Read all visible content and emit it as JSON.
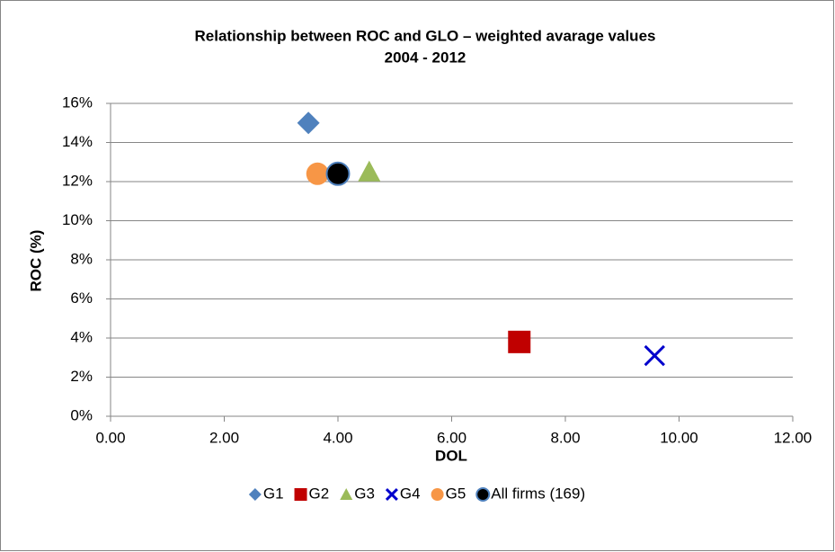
{
  "chart_data": {
    "type": "scatter",
    "title": "Relationship between ROC and GLO – weighted avarage values",
    "subtitle": "2004 - 2012",
    "xlabel": "DOL",
    "ylabel": "ROC (%)",
    "xlim": [
      0,
      12
    ],
    "ylim": [
      0,
      16
    ],
    "xticks": [
      {
        "value": 0,
        "label": "0.00"
      },
      {
        "value": 2,
        "label": "2.00"
      },
      {
        "value": 4,
        "label": "4.00"
      },
      {
        "value": 6,
        "label": "6.00"
      },
      {
        "value": 8,
        "label": "8.00"
      },
      {
        "value": 10,
        "label": "10.00"
      },
      {
        "value": 12,
        "label": "12.00"
      }
    ],
    "yticks": [
      {
        "value": 0,
        "label": "0%"
      },
      {
        "value": 2,
        "label": "2%"
      },
      {
        "value": 4,
        "label": "4%"
      },
      {
        "value": 6,
        "label": "6%"
      },
      {
        "value": 8,
        "label": "8%"
      },
      {
        "value": 10,
        "label": "10%"
      },
      {
        "value": 12,
        "label": "12%"
      },
      {
        "value": 14,
        "label": "14%"
      },
      {
        "value": 16,
        "label": "16%"
      }
    ],
    "grid": true,
    "legend": "bottom",
    "series": [
      {
        "name": "G1",
        "color": "#4f81bd",
        "marker": "diamond",
        "x": [
          3.48
        ],
        "values": [
          15.0
        ]
      },
      {
        "name": "G2",
        "color": "#c00000",
        "marker": "square",
        "x": [
          7.19
        ],
        "values": [
          3.8
        ]
      },
      {
        "name": "G3",
        "color": "#9bbb59",
        "marker": "triangle",
        "x": [
          4.55
        ],
        "values": [
          12.5
        ]
      },
      {
        "name": "G4",
        "color": "#0000cc",
        "marker": "x",
        "x": [
          9.57
        ],
        "values": [
          3.1
        ]
      },
      {
        "name": "G5",
        "color": "#f79646",
        "marker": "circle",
        "x": [
          3.64
        ],
        "values": [
          12.4
        ]
      },
      {
        "name": "All firms (169)",
        "color": "#000000",
        "edgecolor": "#4f81bd",
        "marker": "circle",
        "x": [
          4.0
        ],
        "values": [
          12.4
        ]
      }
    ]
  }
}
